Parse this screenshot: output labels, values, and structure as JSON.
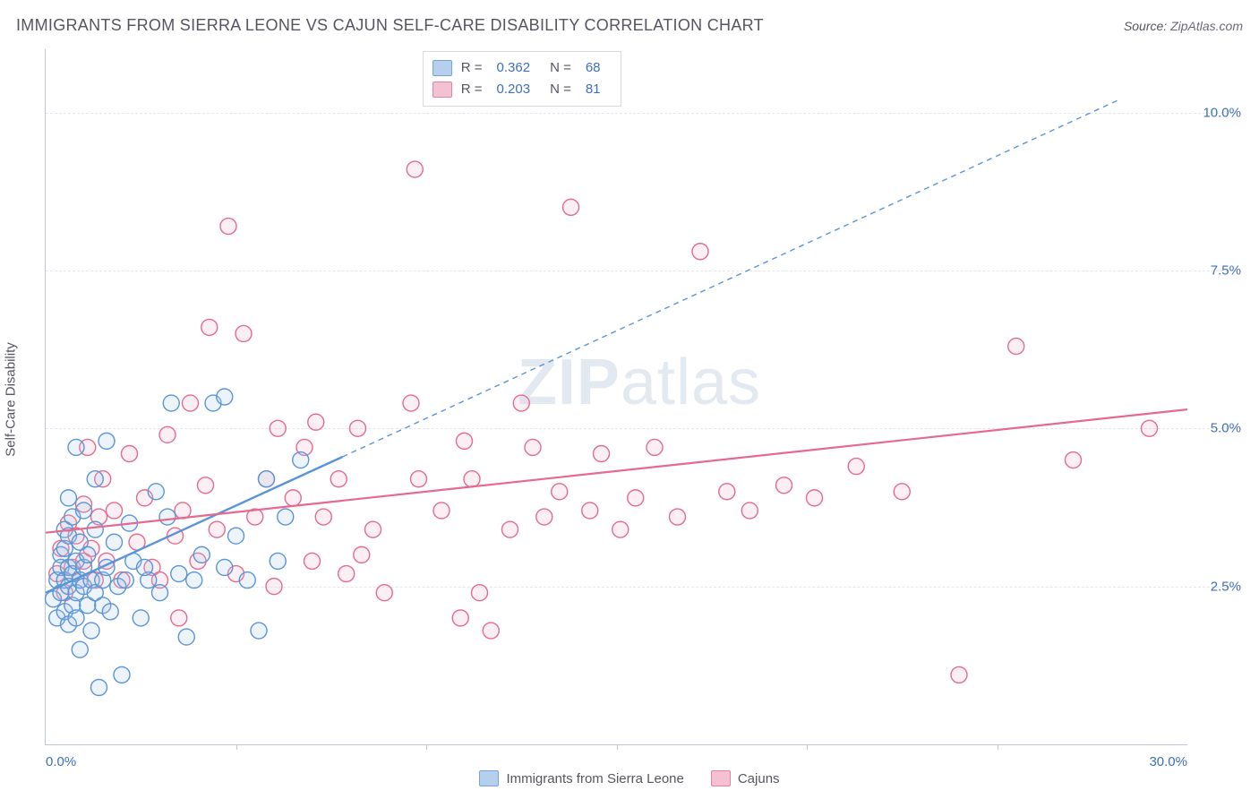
{
  "title": "IMMIGRANTS FROM SIERRA LEONE VS CAJUN SELF-CARE DISABILITY CORRELATION CHART",
  "source_prefix": "Source: ",
  "source_link": "ZipAtlas.com",
  "y_axis_title": "Self-Care Disability",
  "watermark_bold": "ZIP",
  "watermark_rest": "atlas",
  "chart": {
    "type": "scatter",
    "xlim": [
      0,
      30
    ],
    "ylim": [
      0,
      11
    ],
    "x_ticks": [
      0,
      5,
      10,
      15,
      20,
      25,
      30
    ],
    "x_tick_labels": [
      "0.0%",
      "",
      "",
      "",
      "",
      "",
      "30.0%"
    ],
    "y_ticks": [
      2.5,
      5.0,
      7.5,
      10.0
    ],
    "y_tick_labels": [
      "2.5%",
      "5.0%",
      "7.5%",
      "10.0%"
    ],
    "grid_color": "#e3e6ec",
    "axis_color": "#bfc5d2",
    "background_color": "#ffffff",
    "marker_radius": 9,
    "marker_stroke_width": 1.4,
    "marker_fill_opacity": 0.22,
    "series": [
      {
        "name": "Immigrants from Sierra Leone",
        "color_stroke": "#5a95d8",
        "color_fill": "#a8c8ea",
        "R": "0.362",
        "N": "68",
        "trend_solid": {
          "x1": 0,
          "y1": 2.4,
          "x2": 7.8,
          "y2": 4.55
        },
        "trend_dashed": {
          "x1": 7.8,
          "y1": 4.55,
          "x2": 28.2,
          "y2": 10.2
        },
        "trend_width_solid": 2.4,
        "trend_width_dash": 1.4,
        "points": [
          [
            0.2,
            2.3
          ],
          [
            0.3,
            2.6
          ],
          [
            0.3,
            2.0
          ],
          [
            0.4,
            3.0
          ],
          [
            0.4,
            2.4
          ],
          [
            0.4,
            2.8
          ],
          [
            0.5,
            2.6
          ],
          [
            0.5,
            3.1
          ],
          [
            0.5,
            2.1
          ],
          [
            0.5,
            3.4
          ],
          [
            0.6,
            2.5
          ],
          [
            0.6,
            2.8
          ],
          [
            0.6,
            3.3
          ],
          [
            0.6,
            1.9
          ],
          [
            0.7,
            2.2
          ],
          [
            0.7,
            2.7
          ],
          [
            0.7,
            3.6
          ],
          [
            0.8,
            2.0
          ],
          [
            0.8,
            2.9
          ],
          [
            0.8,
            2.4
          ],
          [
            0.8,
            4.7
          ],
          [
            0.9,
            2.6
          ],
          [
            0.9,
            3.2
          ],
          [
            0.9,
            1.5
          ],
          [
            1.0,
            2.5
          ],
          [
            1.0,
            2.8
          ],
          [
            1.0,
            3.7
          ],
          [
            1.1,
            2.2
          ],
          [
            1.1,
            3.0
          ],
          [
            1.2,
            2.6
          ],
          [
            1.2,
            1.8
          ],
          [
            1.3,
            2.4
          ],
          [
            1.3,
            3.4
          ],
          [
            1.4,
            0.9
          ],
          [
            1.5,
            2.6
          ],
          [
            1.5,
            2.2
          ],
          [
            1.6,
            2.8
          ],
          [
            1.6,
            4.8
          ],
          [
            1.7,
            2.1
          ],
          [
            1.8,
            3.2
          ],
          [
            1.9,
            2.5
          ],
          [
            2.0,
            1.1
          ],
          [
            2.1,
            2.6
          ],
          [
            2.2,
            3.5
          ],
          [
            2.3,
            2.9
          ],
          [
            2.5,
            2.0
          ],
          [
            2.7,
            2.6
          ],
          [
            2.9,
            4.0
          ],
          [
            3.0,
            2.4
          ],
          [
            3.2,
            3.6
          ],
          [
            3.3,
            5.4
          ],
          [
            3.5,
            2.7
          ],
          [
            3.7,
            1.7
          ],
          [
            3.9,
            2.6
          ],
          [
            4.1,
            3.0
          ],
          [
            4.4,
            5.4
          ],
          [
            4.7,
            2.8
          ],
          [
            4.7,
            5.5
          ],
          [
            5.0,
            3.3
          ],
          [
            5.3,
            2.6
          ],
          [
            5.6,
            1.8
          ],
          [
            5.8,
            4.2
          ],
          [
            6.1,
            2.9
          ],
          [
            6.3,
            3.6
          ],
          [
            6.7,
            4.5
          ],
          [
            0.6,
            3.9
          ],
          [
            1.3,
            4.2
          ],
          [
            2.6,
            2.8
          ]
        ]
      },
      {
        "name": "Cajuns",
        "color_stroke": "#e46a8f",
        "color_fill": "#f2b7c9",
        "R": "0.203",
        "N": "81",
        "trend_solid": {
          "x1": 0,
          "y1": 3.35,
          "x2": 30,
          "y2": 5.3
        },
        "trend_width_solid": 2.2,
        "points": [
          [
            0.3,
            2.7
          ],
          [
            0.4,
            3.1
          ],
          [
            0.5,
            2.4
          ],
          [
            0.6,
            3.5
          ],
          [
            0.7,
            2.8
          ],
          [
            0.8,
            3.3
          ],
          [
            0.9,
            2.6
          ],
          [
            1.0,
            3.8
          ],
          [
            1.0,
            2.9
          ],
          [
            1.1,
            4.7
          ],
          [
            1.2,
            3.1
          ],
          [
            1.3,
            2.6
          ],
          [
            1.4,
            3.6
          ],
          [
            1.5,
            4.2
          ],
          [
            1.6,
            2.9
          ],
          [
            1.8,
            3.7
          ],
          [
            2.0,
            2.6
          ],
          [
            2.2,
            4.6
          ],
          [
            2.4,
            3.2
          ],
          [
            2.6,
            3.9
          ],
          [
            2.8,
            2.8
          ],
          [
            3.0,
            2.6
          ],
          [
            3.2,
            4.9
          ],
          [
            3.4,
            3.3
          ],
          [
            3.5,
            2.0
          ],
          [
            3.6,
            3.7
          ],
          [
            3.8,
            5.4
          ],
          [
            4.0,
            2.9
          ],
          [
            4.2,
            4.1
          ],
          [
            4.3,
            6.6
          ],
          [
            4.5,
            3.4
          ],
          [
            4.8,
            8.2
          ],
          [
            5.0,
            2.7
          ],
          [
            5.2,
            6.5
          ],
          [
            5.5,
            3.6
          ],
          [
            5.8,
            4.2
          ],
          [
            6.0,
            2.5
          ],
          [
            6.1,
            5.0
          ],
          [
            6.5,
            3.9
          ],
          [
            6.8,
            4.7
          ],
          [
            7.0,
            2.9
          ],
          [
            7.1,
            5.1
          ],
          [
            7.3,
            3.6
          ],
          [
            7.7,
            4.2
          ],
          [
            7.9,
            2.7
          ],
          [
            8.2,
            5.0
          ],
          [
            8.3,
            3.0
          ],
          [
            8.6,
            3.4
          ],
          [
            8.9,
            2.4
          ],
          [
            9.6,
            5.4
          ],
          [
            9.7,
            9.1
          ],
          [
            9.8,
            4.2
          ],
          [
            10.4,
            3.7
          ],
          [
            10.9,
            2.0
          ],
          [
            11.0,
            4.8
          ],
          [
            11.2,
            4.2
          ],
          [
            11.4,
            2.4
          ],
          [
            11.7,
            1.8
          ],
          [
            12.2,
            3.4
          ],
          [
            12.5,
            5.4
          ],
          [
            12.8,
            4.7
          ],
          [
            13.1,
            3.6
          ],
          [
            13.5,
            4.0
          ],
          [
            13.8,
            8.5
          ],
          [
            14.3,
            3.7
          ],
          [
            14.6,
            4.6
          ],
          [
            15.1,
            3.4
          ],
          [
            15.5,
            3.9
          ],
          [
            16.0,
            4.7
          ],
          [
            16.6,
            3.6
          ],
          [
            17.2,
            7.8
          ],
          [
            17.9,
            4.0
          ],
          [
            18.5,
            3.7
          ],
          [
            19.4,
            4.1
          ],
          [
            20.2,
            3.9
          ],
          [
            21.3,
            4.4
          ],
          [
            22.5,
            4.0
          ],
          [
            24.0,
            1.1
          ],
          [
            25.5,
            6.3
          ],
          [
            27.0,
            4.5
          ],
          [
            29.0,
            5.0
          ]
        ]
      }
    ]
  },
  "legend_labels": {
    "R_prefix": "R =",
    "N_prefix": "N ="
  }
}
